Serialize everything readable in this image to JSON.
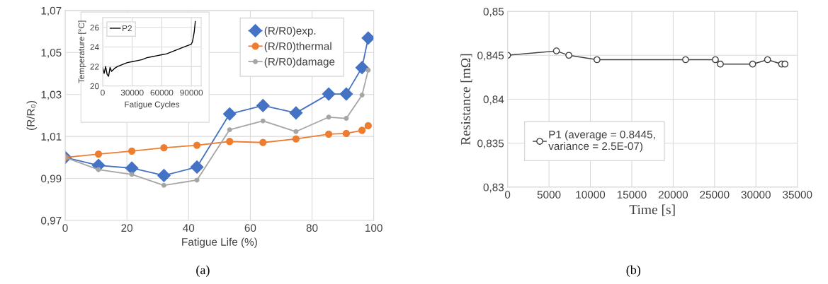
{
  "chart_data": [
    {
      "type": "line",
      "xlabel": "Fatigue Life (%)",
      "ylabel": "(R/R₀)",
      "xlim": [
        0,
        100
      ],
      "ylim": [
        0.97,
        1.07
      ],
      "xticks": [
        0,
        20,
        40,
        60,
        80,
        100
      ],
      "yticks": [
        {
          "value": 0.97,
          "label": "0,97"
        },
        {
          "value": 0.99,
          "label": "0,99"
        },
        {
          "value": 1.01,
          "label": "1,01"
        },
        {
          "value": 1.03,
          "label": "1,03"
        },
        {
          "value": 1.05,
          "label": "1,05"
        },
        {
          "value": 1.07,
          "label": "1,07"
        }
      ],
      "grid": true,
      "legend": "top right",
      "annotations": [
        "(a)"
      ],
      "x": [
        0,
        10.8,
        21.6,
        32.0,
        42.7,
        53.3,
        64.1,
        74.8,
        85.4,
        91.1,
        96.2,
        98.2
      ],
      "series": [
        {
          "name": "(R/R0)exp.",
          "color": "#4472c4",
          "marker": "diamond",
          "values": [
            1.0,
            0.9962,
            0.9949,
            0.9914,
            0.9954,
            1.0207,
            1.0247,
            1.0212,
            1.0302,
            1.0302,
            1.0428,
            1.0569
          ]
        },
        {
          "name": "(R/R0)thermal",
          "color": "#ed7d31",
          "marker": "circle",
          "values": [
            1.0,
            1.0016,
            1.003,
            1.0046,
            1.0058,
            1.0076,
            1.0071,
            1.0088,
            1.0111,
            1.0114,
            1.0129,
            1.0151
          ]
        },
        {
          "name": "(R/R0)damage",
          "color": "#a5a5a5",
          "marker": "circle",
          "values": [
            1.0,
            0.9942,
            0.9919,
            0.9867,
            0.9892,
            1.0132,
            1.0174,
            1.0123,
            1.0192,
            1.0186,
            1.0297,
            1.0416
          ]
        }
      ]
    },
    {
      "type": "line",
      "xlabel": "Fatigue Cycles",
      "ylabel": "Temperature [°C]",
      "xlim": [
        0,
        100000
      ],
      "ylim": [
        20,
        27
      ],
      "xticks": [
        0,
        30000,
        60000,
        90000
      ],
      "yticks": [
        20,
        22,
        24,
        26
      ],
      "grid": true,
      "legend": "top left",
      "x": [
        0,
        1500,
        3000,
        4500,
        6000,
        7500,
        9000,
        12000,
        15000,
        20000,
        25000,
        30000,
        35000,
        40000,
        45000,
        50000,
        55000,
        60000,
        65000,
        70000,
        75000,
        80000,
        85000,
        88000,
        90000,
        91000,
        92000,
        93000,
        94000
      ],
      "series": [
        {
          "name": "P2",
          "color": "#000000",
          "marker": "none",
          "values": [
            21.9,
            21.3,
            22.0,
            21.2,
            21.0,
            21.9,
            21.5,
            21.8,
            22.0,
            22.2,
            22.4,
            22.5,
            22.6,
            22.7,
            22.9,
            23.0,
            23.1,
            23.2,
            23.3,
            23.5,
            23.7,
            23.9,
            24.1,
            24.2,
            24.3,
            24.5,
            25.0,
            25.6,
            26.6
          ]
        }
      ]
    },
    {
      "type": "line",
      "xlabel": "Time [s]",
      "ylabel": "Resistance [mΩ]",
      "xlim": [
        0,
        35000
      ],
      "ylim": [
        0.83,
        0.85
      ],
      "xticks": [
        0,
        5000,
        10000,
        15000,
        20000,
        25000,
        30000,
        35000
      ],
      "yticks": [
        {
          "value": 0.83,
          "label": "0,83"
        },
        {
          "value": 0.835,
          "label": "0,835"
        },
        {
          "value": 0.84,
          "label": "0,84"
        },
        {
          "value": 0.845,
          "label": "0,845"
        },
        {
          "value": 0.85,
          "label": "0,85"
        }
      ],
      "grid": true,
      "legend": "bottom left",
      "annotations": [
        "(b)"
      ],
      "x": [
        0,
        5900,
        7400,
        10800,
        21500,
        25100,
        25700,
        29600,
        31400,
        33100,
        33500
      ],
      "series": [
        {
          "name": "P1 (average = 0.8445,\nvariance = 2.5E-07)",
          "color": "#404040",
          "marker": "circle",
          "values": [
            0.845,
            0.8455,
            0.845,
            0.8445,
            0.8445,
            0.8445,
            0.844,
            0.844,
            0.8445,
            0.844,
            0.844
          ]
        }
      ]
    }
  ]
}
